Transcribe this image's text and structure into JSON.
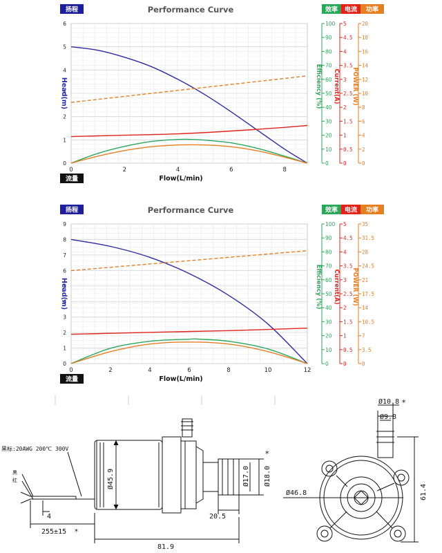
{
  "chart_data": [
    {
      "type": "line",
      "title": "Performance Curve",
      "xlabel": "Flow(L/min)",
      "badge_x": "流量",
      "badge_head": "扬程",
      "badge_eff": "效率",
      "badge_cur": "电流",
      "badge_pow": "功率",
      "xlim": [
        0,
        8.85
      ],
      "ylim": [
        0,
        6
      ],
      "x_ticks": [
        0,
        2,
        4,
        6,
        8
      ],
      "y_ticks": [
        0,
        1,
        2,
        3,
        4,
        5,
        6
      ],
      "axes": [
        {
          "key": "eff",
          "label": "Efficiency (%)",
          "color": "#2aa75a",
          "max": 100,
          "ticks": [
            "0",
            "10",
            "20",
            "30",
            "40",
            "50",
            "60",
            "70",
            "80",
            "90",
            "100"
          ]
        },
        {
          "key": "cur",
          "label": "Current(A)",
          "color": "#e2231a",
          "max": 5,
          "ticks": [
            "0",
            "0.5",
            "1",
            "1.5",
            "2",
            "2.5",
            "3",
            "3.5",
            "4",
            "4.5",
            "5"
          ]
        },
        {
          "key": "pow",
          "label": "POWER (W)",
          "color": "#e67e22",
          "max": 20,
          "ticks": [
            "0",
            "2",
            "4",
            "6",
            "8",
            "10",
            "12",
            "14",
            "16",
            "18",
            "20"
          ]
        }
      ],
      "series": [
        {
          "name": "Head(m)",
          "color": "#2b2aa0",
          "axis": "head",
          "dash": false,
          "x": [
            0,
            1,
            2,
            3,
            4,
            5,
            6,
            7,
            8,
            8.85
          ],
          "y": [
            5.0,
            4.85,
            4.55,
            4.15,
            3.6,
            2.95,
            2.2,
            1.4,
            0.6,
            0.0
          ]
        },
        {
          "key": "eff",
          "color": "#2aa75a",
          "axis": "eff",
          "dash": false,
          "x": [
            0,
            1,
            2,
            3,
            4,
            4.5,
            5,
            6,
            7,
            8,
            8.85
          ],
          "y": [
            0,
            7,
            12,
            15.5,
            17,
            17,
            16.5,
            14.5,
            10.5,
            5,
            0
          ]
        },
        {
          "key": "cur",
          "color": "#e2231a",
          "axis": "cur",
          "dash": false,
          "x": [
            0,
            2,
            4,
            6,
            8,
            8.85
          ],
          "y": [
            0.95,
            1.0,
            1.05,
            1.15,
            1.28,
            1.35
          ]
        },
        {
          "key": "pow",
          "color": "#e67e22",
          "axis": "pow",
          "dash": false,
          "x": [
            0,
            1,
            2,
            3,
            4,
            5,
            6,
            7,
            8,
            8.85
          ],
          "y": [
            0,
            1.0,
            1.8,
            2.35,
            2.6,
            2.6,
            2.35,
            1.75,
            0.85,
            0
          ]
        },
        {
          "key": "pow_in",
          "color": "#e67e22",
          "axis": "pow",
          "dash": true,
          "x": [
            0,
            8.85
          ],
          "y": [
            8.7,
            12.5
          ]
        }
      ]
    },
    {
      "type": "line",
      "title": "Performance Curve",
      "xlabel": "Flow(L/min)",
      "badge_x": "流量",
      "badge_head": "扬程",
      "badge_eff": "效率",
      "badge_cur": "电流",
      "badge_pow": "功率",
      "xlim": [
        0,
        12
      ],
      "ylim": [
        0,
        9
      ],
      "x_ticks": [
        0,
        2,
        4,
        6,
        8,
        10,
        12
      ],
      "y_ticks": [
        0,
        1,
        2,
        3,
        4,
        5,
        6,
        7,
        8,
        9
      ],
      "axes": [
        {
          "key": "eff",
          "label": "Efficiency (%)",
          "color": "#2aa75a",
          "max": 100,
          "ticks": [
            "0",
            "10",
            "20",
            "30",
            "40",
            "50",
            "60",
            "70",
            "80",
            "90",
            "100"
          ]
        },
        {
          "key": "cur",
          "label": "Current(A)",
          "color": "#e2231a",
          "max": 5,
          "ticks": [
            "0",
            "0.5",
            "1",
            "1.5",
            "2",
            "2.5",
            "3",
            "3.5",
            "4",
            "4.5",
            "5"
          ]
        },
        {
          "key": "pow",
          "label": "POWER (W)",
          "color": "#e67e22",
          "max": 35,
          "ticks": [
            "0",
            "3.5",
            "7",
            "10.5",
            "14",
            "17.5",
            "21",
            "24.5",
            "28",
            "31.5",
            "35"
          ]
        }
      ],
      "series": [
        {
          "name": "Head(m)",
          "color": "#2b2aa0",
          "axis": "head",
          "dash": false,
          "x": [
            0,
            2,
            4,
            6,
            8,
            10,
            12
          ],
          "y": [
            8.0,
            7.55,
            6.85,
            5.8,
            4.4,
            2.55,
            0.0
          ]
        },
        {
          "key": "eff",
          "color": "#2aa75a",
          "axis": "eff",
          "dash": false,
          "x": [
            0,
            2,
            4,
            6,
            6.5,
            8,
            10,
            12
          ],
          "y": [
            0,
            11,
            16,
            17.5,
            17.5,
            16,
            10.5,
            0
          ]
        },
        {
          "key": "cur",
          "color": "#e2231a",
          "axis": "cur",
          "dash": false,
          "x": [
            0,
            4,
            8,
            12
          ],
          "y": [
            1.05,
            1.12,
            1.18,
            1.27
          ]
        },
        {
          "key": "pow",
          "color": "#e67e22",
          "axis": "pow",
          "dash": false,
          "x": [
            0,
            2,
            4,
            6,
            8,
            10,
            12
          ],
          "y": [
            0,
            3.0,
            4.9,
            5.4,
            4.9,
            3.0,
            0
          ]
        },
        {
          "key": "pow_in",
          "color": "#e67e22",
          "axis": "pow",
          "dash": true,
          "x": [
            0,
            12
          ],
          "y": [
            23.3,
            28.3
          ]
        }
      ]
    }
  ],
  "drawing": {
    "wire_label": "黑标:20AWG 200℃ 300V",
    "wire_black": "黑",
    "wire_red": "红",
    "dims": {
      "d459": "Ø45.9",
      "d170": "Ø17.0",
      "d180": "Ø18.0",
      "d468": "Ø46.8",
      "d108": "Ø10.8",
      "d98": "Ø9.8",
      "len205": "20.5",
      "len819": "81.9",
      "len614": "61.4",
      "len4": "4",
      "wire_len": "255±15",
      "star": "*"
    }
  }
}
